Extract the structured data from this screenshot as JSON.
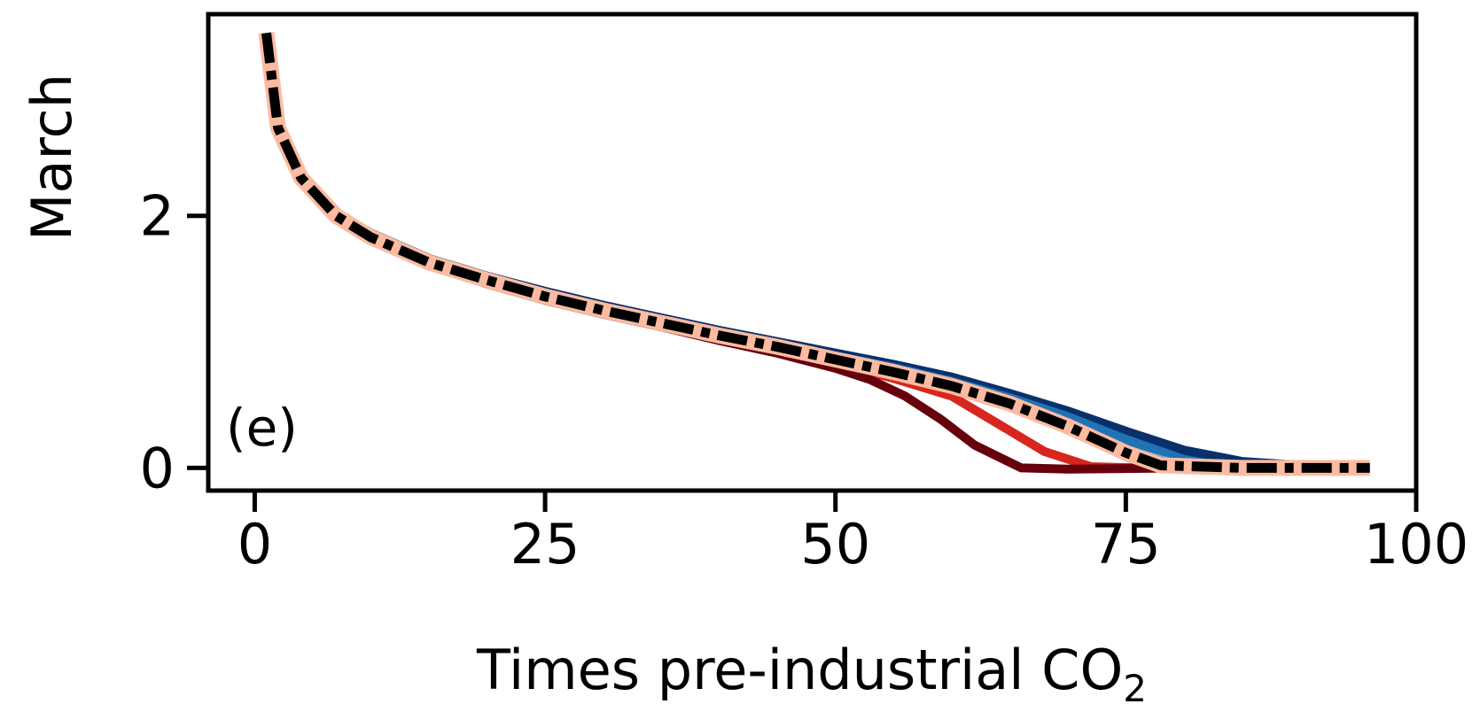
{
  "chart_data": {
    "type": "line",
    "panel_label": "(e)",
    "xlabel": "Times pre-industrial CO",
    "xlabel_sub": "2",
    "ylabel": "March ",
    "xlim": [
      -4,
      100
    ],
    "ylim": [
      -0.18,
      3.6
    ],
    "xticks": [
      0,
      25,
      50,
      75,
      100
    ],
    "yticks": [
      0,
      2
    ],
    "grid": false,
    "legend": "none",
    "series": [
      {
        "color": "#08306b",
        "width": 16,
        "style": "solid",
        "x": [
          1,
          2,
          4,
          7,
          10,
          15,
          20,
          25,
          30,
          35,
          40,
          45,
          50,
          55,
          60,
          65,
          70,
          75,
          80,
          85,
          90,
          96
        ],
        "y": [
          3.45,
          2.7,
          2.3,
          2.0,
          1.84,
          1.64,
          1.5,
          1.38,
          1.27,
          1.17,
          1.07,
          0.98,
          0.89,
          0.8,
          0.7,
          0.57,
          0.43,
          0.27,
          0.12,
          0.03,
          0.0,
          0.0
        ]
      },
      {
        "color": "#2171b5",
        "width": 12,
        "style": "solid",
        "x": [
          1,
          2,
          4,
          7,
          10,
          15,
          20,
          25,
          30,
          35,
          40,
          45,
          50,
          55,
          60,
          65,
          70,
          75,
          80,
          83,
          90,
          96
        ],
        "y": [
          3.45,
          2.7,
          2.3,
          2.0,
          1.84,
          1.64,
          1.5,
          1.38,
          1.27,
          1.17,
          1.07,
          0.98,
          0.88,
          0.79,
          0.68,
          0.55,
          0.4,
          0.22,
          0.06,
          0.01,
          0.0,
          0.0
        ]
      },
      {
        "color": "#6baed6",
        "width": 8,
        "style": "solid",
        "x": [
          1,
          2,
          4,
          7,
          10,
          15,
          20,
          25,
          30,
          35,
          40,
          45,
          50,
          55,
          60,
          65,
          70,
          75,
          80,
          90,
          96
        ],
        "y": [
          3.45,
          2.7,
          2.3,
          2.0,
          1.84,
          1.63,
          1.49,
          1.37,
          1.26,
          1.16,
          1.06,
          0.97,
          0.87,
          0.77,
          0.66,
          0.52,
          0.35,
          0.15,
          0.02,
          0.0,
          0.0
        ]
      },
      {
        "color": "#fc9272",
        "width": 8,
        "style": "solid",
        "x": [
          1,
          2,
          4,
          7,
          10,
          15,
          20,
          25,
          30,
          35,
          40,
          45,
          50,
          55,
          60,
          65,
          70,
          75,
          77,
          85,
          96
        ],
        "y": [
          3.45,
          2.7,
          2.3,
          2.0,
          1.83,
          1.62,
          1.48,
          1.35,
          1.24,
          1.14,
          1.04,
          0.95,
          0.85,
          0.75,
          0.63,
          0.48,
          0.3,
          0.08,
          0.01,
          0.0,
          0.0
        ]
      },
      {
        "color": "#d7261e",
        "width": 10,
        "style": "solid",
        "x": [
          1,
          2,
          4,
          7,
          10,
          15,
          20,
          25,
          30,
          35,
          40,
          45,
          50,
          55,
          60,
          64,
          68,
          72,
          76,
          85,
          96
        ],
        "y": [
          3.45,
          2.7,
          2.3,
          1.99,
          1.83,
          1.62,
          1.47,
          1.34,
          1.23,
          1.13,
          1.03,
          0.93,
          0.83,
          0.71,
          0.57,
          0.35,
          0.13,
          0.01,
          0.0,
          0.0,
          0.0
        ]
      },
      {
        "color": "#67000d",
        "width": 10,
        "style": "solid",
        "x": [
          1,
          2,
          4,
          7,
          10,
          15,
          20,
          25,
          30,
          35,
          40,
          45,
          50,
          53,
          56,
          59,
          62,
          66,
          70,
          80,
          96
        ],
        "y": [
          3.45,
          2.7,
          2.3,
          1.99,
          1.82,
          1.61,
          1.46,
          1.33,
          1.22,
          1.12,
          1.01,
          0.91,
          0.79,
          0.7,
          0.57,
          0.39,
          0.18,
          0.0,
          -0.01,
          0.0,
          0.0
        ]
      },
      {
        "color": "#fcbba1",
        "width": 18,
        "style": "solid",
        "x": [
          1,
          2,
          4,
          7,
          10,
          15,
          20,
          25,
          30,
          35,
          40,
          45,
          50,
          55,
          60,
          65,
          70,
          75,
          78,
          85,
          96
        ],
        "y": [
          3.45,
          2.7,
          2.3,
          2.0,
          1.83,
          1.63,
          1.49,
          1.36,
          1.25,
          1.15,
          1.05,
          0.96,
          0.86,
          0.76,
          0.65,
          0.51,
          0.33,
          0.12,
          0.02,
          0.0,
          0.0
        ]
      },
      {
        "color": "#000000",
        "width": 11,
        "style": "dashdot",
        "x": [
          1,
          2,
          4,
          7,
          10,
          15,
          20,
          25,
          30,
          35,
          40,
          45,
          50,
          55,
          60,
          65,
          70,
          75,
          78,
          85,
          96
        ],
        "y": [
          3.45,
          2.7,
          2.3,
          2.0,
          1.83,
          1.63,
          1.49,
          1.36,
          1.25,
          1.15,
          1.05,
          0.96,
          0.86,
          0.76,
          0.65,
          0.51,
          0.33,
          0.12,
          0.02,
          0.0,
          0.0
        ]
      }
    ]
  }
}
